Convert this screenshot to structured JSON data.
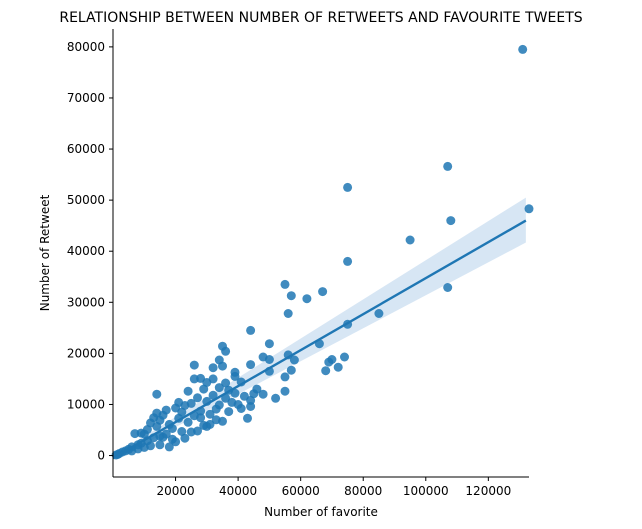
{
  "chart_data": {
    "type": "scatter",
    "title": "RELATIONSHIP BETWEEN NUMBER OF RETWEETS AND FAVOURITE TWEETS",
    "xlabel": "Number of favorite",
    "ylabel": "Number of Retweet",
    "xlim": [
      0,
      133000
    ],
    "ylim": [
      -4200,
      83500
    ],
    "x_ticks": [
      20000,
      40000,
      60000,
      80000,
      100000,
      120000
    ],
    "y_ticks": [
      0,
      10000,
      20000,
      30000,
      40000,
      50000,
      60000,
      70000,
      80000
    ],
    "grid": false,
    "colors": {
      "points": "#1f77b4",
      "regression_line": "#1f77b4",
      "confidence_band": "#c6dbef"
    },
    "regression": {
      "x": [
        0,
        132000
      ],
      "y": [
        -500,
        46000
      ],
      "ci_lower": [
        -900,
        41700
      ],
      "ci_upper": [
        -100,
        50500
      ]
    },
    "series": [
      {
        "points": [
          [
            131000,
            79500
          ],
          [
            107000,
            56600
          ],
          [
            75000,
            52500
          ],
          [
            108000,
            46000
          ],
          [
            133000,
            48300
          ],
          [
            95000,
            42200
          ],
          [
            75000,
            38000
          ],
          [
            107000,
            32900
          ],
          [
            55000,
            33500
          ],
          [
            57000,
            31300
          ],
          [
            62000,
            30700
          ],
          [
            67000,
            32100
          ],
          [
            56000,
            27800
          ],
          [
            85000,
            27800
          ],
          [
            75000,
            25700
          ],
          [
            44000,
            24500
          ],
          [
            35000,
            21400
          ],
          [
            50000,
            21900
          ],
          [
            66000,
            21900
          ],
          [
            36000,
            20400
          ],
          [
            48000,
            19300
          ],
          [
            56000,
            19700
          ],
          [
            58000,
            18700
          ],
          [
            50000,
            18800
          ],
          [
            70000,
            18800
          ],
          [
            69000,
            18300
          ],
          [
            74000,
            19300
          ],
          [
            34000,
            18700
          ],
          [
            26000,
            17700
          ],
          [
            68000,
            16600
          ],
          [
            72000,
            17300
          ],
          [
            32000,
            17200
          ],
          [
            35000,
            17500
          ],
          [
            50000,
            16500
          ],
          [
            57000,
            16700
          ],
          [
            44000,
            17800
          ],
          [
            39000,
            16300
          ],
          [
            39000,
            15500
          ],
          [
            55000,
            15400
          ],
          [
            28000,
            15100
          ],
          [
            26000,
            15000
          ],
          [
            32000,
            15000
          ],
          [
            30000,
            14300
          ],
          [
            36000,
            14200
          ],
          [
            41000,
            14400
          ],
          [
            46000,
            13000
          ],
          [
            55000,
            12600
          ],
          [
            24000,
            12600
          ],
          [
            14000,
            12000
          ],
          [
            29000,
            13000
          ],
          [
            34000,
            13300
          ],
          [
            37000,
            12800
          ],
          [
            48000,
            12000
          ],
          [
            52000,
            11200
          ],
          [
            44000,
            10800
          ],
          [
            21000,
            10400
          ],
          [
            40000,
            10000
          ],
          [
            43000,
            7300
          ],
          [
            44000,
            9600
          ],
          [
            35000,
            6700
          ],
          [
            30000,
            5700
          ],
          [
            27000,
            4800
          ],
          [
            22000,
            4700
          ],
          [
            19000,
            5300
          ],
          [
            17000,
            4200
          ],
          [
            15000,
            3800
          ],
          [
            13000,
            3500
          ],
          [
            11000,
            2900
          ],
          [
            9000,
            2400
          ],
          [
            8000,
            2100
          ],
          [
            6000,
            1700
          ],
          [
            5000,
            1200
          ],
          [
            4000,
            900
          ],
          [
            3000,
            700
          ],
          [
            2000,
            400
          ],
          [
            1500,
            200
          ],
          [
            1000,
            100
          ],
          [
            7000,
            4300
          ],
          [
            9000,
            4400
          ],
          [
            11000,
            5100
          ],
          [
            12000,
            6400
          ],
          [
            13000,
            7400
          ],
          [
            14000,
            8300
          ],
          [
            15000,
            6900
          ],
          [
            16000,
            7900
          ],
          [
            17000,
            8900
          ],
          [
            18000,
            6100
          ],
          [
            19000,
            3200
          ],
          [
            20000,
            9300
          ],
          [
            21000,
            7300
          ],
          [
            22000,
            8500
          ],
          [
            23000,
            9800
          ],
          [
            24000,
            6500
          ],
          [
            25000,
            10200
          ],
          [
            26000,
            7800
          ],
          [
            27000,
            11300
          ],
          [
            28000,
            8700
          ],
          [
            29000,
            5900
          ],
          [
            30000,
            10600
          ],
          [
            31000,
            8100
          ],
          [
            32000,
            11800
          ],
          [
            33000,
            7000
          ],
          [
            34000,
            9900
          ],
          [
            36000,
            11200
          ],
          [
            37000,
            8600
          ],
          [
            38000,
            10400
          ],
          [
            39000,
            12200
          ],
          [
            41000,
            9200
          ],
          [
            42000,
            11600
          ],
          [
            45000,
            12100
          ],
          [
            18000,
            1700
          ],
          [
            15000,
            2100
          ],
          [
            12000,
            1900
          ],
          [
            10000,
            1600
          ],
          [
            8000,
            1300
          ],
          [
            6000,
            900
          ],
          [
            23000,
            3400
          ],
          [
            25000,
            4600
          ],
          [
            20000,
            2700
          ],
          [
            28000,
            7400
          ],
          [
            31000,
            6100
          ],
          [
            33000,
            9100
          ],
          [
            10000,
            4200
          ],
          [
            14000,
            5700
          ],
          [
            16000,
            3600
          ]
        ]
      }
    ]
  }
}
